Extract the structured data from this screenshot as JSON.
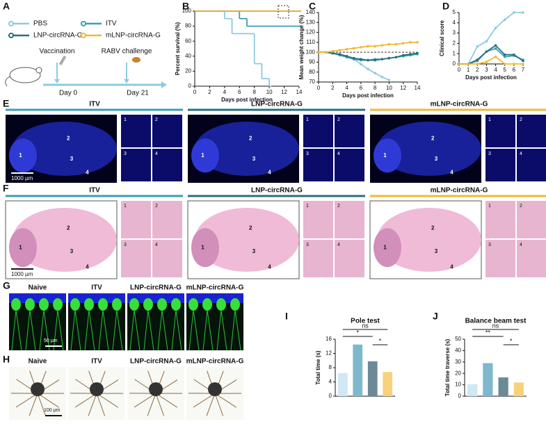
{
  "chart_data": [
    {
      "type": "line",
      "step": true,
      "xlabel": "Days post infection",
      "ylabel": "Percent survival (%)",
      "xlim": [
        0,
        14
      ],
      "xticks": [
        0,
        2,
        4,
        6,
        8,
        10,
        12,
        14
      ],
      "ylim": [
        0,
        100
      ],
      "yticks": [
        0,
        20,
        40,
        60,
        80,
        100
      ],
      "series": [
        {
          "name": "PBS",
          "color": "#8ccbe0",
          "x": [
            0,
            4,
            5,
            8,
            9,
            10
          ],
          "values": [
            100,
            90,
            70,
            30,
            10,
            0
          ]
        },
        {
          "name": "ITV",
          "color": "#3a9fb5",
          "x": [
            0,
            6,
            7,
            14
          ],
          "values": [
            100,
            90,
            80,
            80
          ]
        },
        {
          "name": "LNP-circRNA-G",
          "color": "#2a6f7f",
          "x": [
            0,
            14
          ],
          "values": [
            100,
            100
          ]
        },
        {
          "name": "mLNP-circRNA-G",
          "color": "#f2b833",
          "x": [
            0,
            14
          ],
          "values": [
            100,
            100
          ]
        }
      ]
    },
    {
      "type": "line",
      "xlabel": "Days post infection",
      "ylabel": "Mean weight change (%)",
      "xlim": [
        0,
        14
      ],
      "xticks": [
        0,
        2,
        4,
        6,
        8,
        10,
        12,
        14
      ],
      "ylim": [
        70,
        140
      ],
      "yticks": [
        70,
        80,
        90,
        100,
        110,
        120,
        130,
        140
      ],
      "reference_line": 100,
      "x": [
        0,
        1,
        2,
        3,
        4,
        5,
        6,
        7,
        8,
        9,
        10,
        11,
        12,
        13,
        14
      ],
      "series": [
        {
          "name": "PBS",
          "color": "#8ccbe0",
          "values": [
            100,
            100,
            99,
            98,
            96,
            93,
            88,
            83,
            79,
            75,
            72,
            null,
            null,
            null,
            null
          ]
        },
        {
          "name": "ITV",
          "color": "#3a9fb5",
          "values": [
            100,
            100,
            99,
            97,
            95,
            93,
            92,
            92,
            93,
            93,
            94,
            95,
            96,
            97,
            98
          ]
        },
        {
          "name": "LNP-circRNA-G",
          "color": "#2a6f7f",
          "values": [
            100,
            100,
            99,
            98,
            96,
            94,
            93,
            92,
            92,
            93,
            94,
            95,
            97,
            98,
            99
          ]
        },
        {
          "name": "mLNP-circRNA-G",
          "color": "#f2b833",
          "values": [
            100,
            100,
            101,
            102,
            103,
            104,
            105,
            106,
            106,
            107,
            108,
            108,
            109,
            110,
            110
          ]
        }
      ]
    },
    {
      "type": "line",
      "xlabel": "Days post infection",
      "ylabel": "Clinical score",
      "xlim": [
        0,
        7
      ],
      "xticks": [
        0,
        1,
        2,
        3,
        4,
        5,
        6,
        7
      ],
      "ylim": [
        0,
        5
      ],
      "yticks": [
        0,
        1,
        2,
        3,
        4,
        5
      ],
      "x": [
        0,
        1,
        2,
        3,
        4,
        5,
        6,
        7
      ],
      "series": [
        {
          "name": "PBS",
          "color": "#8ccbe0",
          "values": [
            0,
            0,
            1.7,
            2.2,
            3.5,
            4.3,
            5,
            5
          ]
        },
        {
          "name": "ITV",
          "color": "#3a9fb5",
          "values": [
            0,
            0,
            0.3,
            1.2,
            1.5,
            0.7,
            0.8,
            0.4
          ]
        },
        {
          "name": "LNP-circRNA-G",
          "color": "#2a6f7f",
          "values": [
            0,
            0,
            0.4,
            1.2,
            1.8,
            0.9,
            0.9,
            0.3
          ]
        },
        {
          "name": "mLNP-circRNA-G",
          "color": "#f2b833",
          "values": [
            0,
            0,
            0,
            0.2,
            0.7,
            0,
            0,
            0
          ]
        }
      ]
    },
    {
      "type": "bar",
      "title": "Pole test",
      "ylabel": "Total time (s)",
      "ylim": [
        0,
        16
      ],
      "yticks": [
        0,
        4,
        8,
        12,
        16
      ],
      "categories": [
        null,
        null,
        null,
        null
      ],
      "values": [
        6.5,
        14.5,
        9.8,
        6.8
      ],
      "colors": [
        "#cfe8f3",
        "#7fb8cc",
        "#6b8a96",
        "#f6d27a"
      ],
      "annotations": [
        "ns",
        "*",
        "*"
      ]
    },
    {
      "type": "bar",
      "title": "Balance beam test",
      "ylabel": "Total time traverse (s)",
      "ylim": [
        0,
        50
      ],
      "yticks": [
        0,
        10,
        20,
        30,
        40,
        50
      ],
      "categories": [
        null,
        null,
        null,
        null
      ],
      "values": [
        10.5,
        29,
        16.5,
        12
      ],
      "colors": [
        "#cfe8f3",
        "#7fb8cc",
        "#6b8a96",
        "#f6d27a"
      ],
      "annotations": [
        "ns",
        "**",
        "*"
      ]
    }
  ],
  "panel_labels": [
    "A",
    "B",
    "C",
    "D",
    "E",
    "F",
    "G",
    "H",
    "I",
    "J"
  ],
  "panel_a": {
    "events": [
      "Vaccination",
      "RABV challenge"
    ],
    "days": [
      "Day 0",
      "Day 21"
    ]
  },
  "region_labels": [
    "1",
    "2",
    "3",
    "4"
  ],
  "images": {
    "E": {
      "columns": [
        "ITV",
        "LNP-circRNA-G",
        "mLNP-circRNA-G"
      ],
      "colors": [
        "#3a9fb5",
        "#2a6f7f",
        "#f2b833"
      ],
      "scale_bar": "1000 µm"
    },
    "F": {
      "columns": [
        "ITV",
        "LNP-circRNA-G",
        "mLNP-circRNA-G"
      ],
      "colors": [
        "#3a9fb5",
        "#2a6f7f",
        "#f2b833"
      ],
      "scale_bar": "1000 µm"
    },
    "G": {
      "columns": [
        "Naive",
        "ITV",
        "LNP-circRNA-G",
        "mLNP-circRNA-G"
      ],
      "scale_bar": "50 µm"
    },
    "H": {
      "columns": [
        "Naive",
        "ITV",
        "LNP-circRNA-G",
        "mLNP-circRNA-G"
      ],
      "scale_bar": "100 µm"
    }
  }
}
